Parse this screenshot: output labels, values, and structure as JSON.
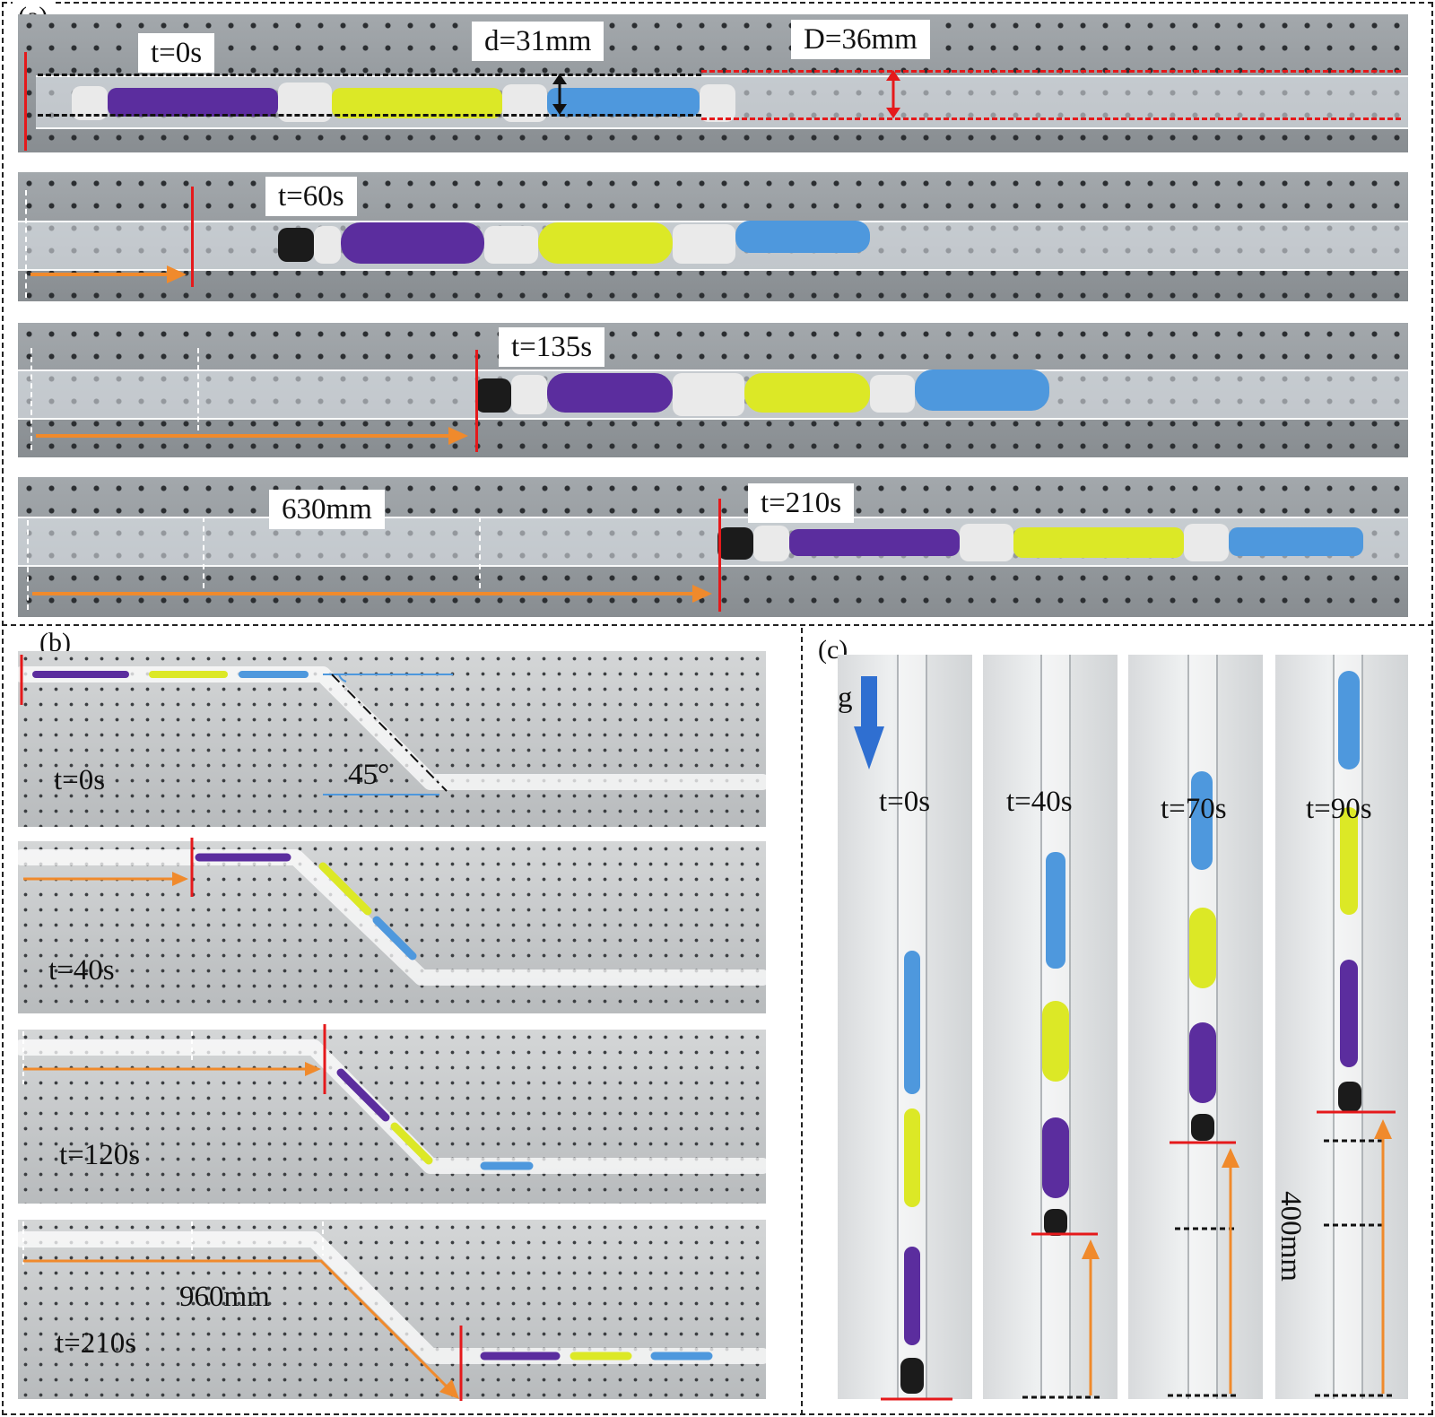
{
  "panels": {
    "a": {
      "label": "(a)",
      "rows": [
        {
          "time": "t=0s",
          "extra_labels": [
            "d=31mm",
            "D=36mm"
          ]
        },
        {
          "time": "t=60s"
        },
        {
          "time": "t=135s"
        },
        {
          "time": "t=210s",
          "distance": "630mm"
        }
      ]
    },
    "b": {
      "label": "(b)",
      "angle": "45°",
      "rows": [
        {
          "time": "t=0s"
        },
        {
          "time": "t=40s"
        },
        {
          "time": "t=120s"
        },
        {
          "time": "t=210s",
          "distance": "960mm"
        }
      ]
    },
    "c": {
      "label": "(c)",
      "gravity": "g",
      "columns": [
        {
          "time": "t=0s"
        },
        {
          "time": "t=40s"
        },
        {
          "time": "t=70s"
        },
        {
          "time": "t=90s",
          "distance": "400mm"
        }
      ]
    }
  },
  "colors": {
    "marker_red": "#e5191b",
    "arrow_orange": "#f08a2c",
    "robot_purple": "#5b2d9e",
    "robot_yellow": "#dce826",
    "robot_blue": "#4e98dd",
    "gravity_arrow": "#2f6fd1"
  }
}
